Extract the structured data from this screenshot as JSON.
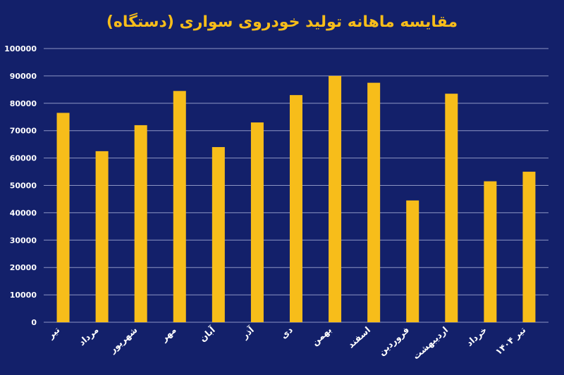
{
  "chart_data": {
    "type": "bar",
    "title": "مقایسه ماهانه تولید خودروی سواری (دستگاه)",
    "xlabel": "",
    "ylabel": "",
    "categories": [
      "تیر",
      "مرداد",
      "شهریور",
      "مهر",
      "آبان",
      "آذر",
      "دی",
      "بهمن",
      "اسفند",
      "فروردین",
      "اردیبهشت",
      "خرداد",
      "تیر ۱۴۰۴"
    ],
    "values": [
      76500,
      62500,
      72000,
      84500,
      64000,
      73000,
      83000,
      90000,
      87500,
      44500,
      83500,
      51500,
      55000
    ],
    "ylim": [
      0,
      100000
    ],
    "yticks": [
      "100000",
      "90000",
      "80000",
      "70000",
      "60000",
      "50000",
      "40000",
      "30000",
      "20000",
      "10000",
      "0"
    ],
    "grid": true,
    "colors": {
      "background": "#13206a",
      "bar": "#f7bd1a",
      "title": "#f7bd1a",
      "text": "#ffffff",
      "grid": "#8d95c4"
    }
  }
}
